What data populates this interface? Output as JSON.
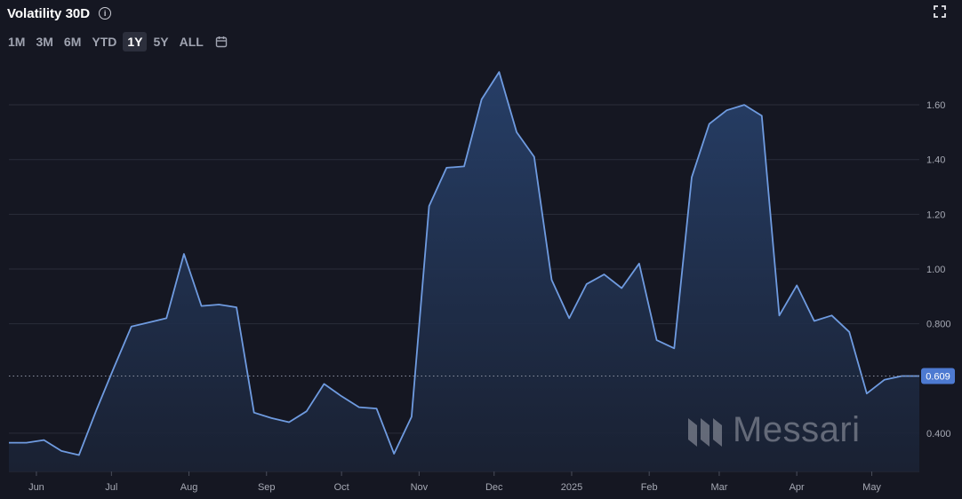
{
  "header": {
    "title": "Volatility 30D",
    "info_icon": "info-icon",
    "fullscreen_icon": "fullscreen-icon"
  },
  "range_selector": {
    "buttons": [
      "1M",
      "3M",
      "6M",
      "YTD",
      "1Y",
      "5Y",
      "ALL"
    ],
    "active": "1Y",
    "calendar_icon": "calendar-icon"
  },
  "watermark": {
    "text": "Messari",
    "icon": "messari-logo"
  },
  "colors": {
    "background": "#151722",
    "line": "#6f9be0",
    "area_top": "#27406a",
    "area_bottom": "#1a2234",
    "badge": "#4d7ad1",
    "grid": "#2a2d3a"
  },
  "chart_data": {
    "type": "area",
    "title": "Volatility 30D",
    "xlabel": "",
    "ylabel": "",
    "ylim": [
      0.26,
      1.73
    ],
    "yticks": [
      0.4,
      0.8,
      1.0,
      1.2,
      1.4,
      1.6
    ],
    "ytick_labels": [
      "0.400",
      "0.800",
      "1.00",
      "1.20",
      "1.40",
      "1.60"
    ],
    "xtick_labels": [
      "Jun",
      "Jul",
      "Aug",
      "Sep",
      "Oct",
      "Nov",
      "Dec",
      "2025",
      "Feb",
      "Mar",
      "Apr",
      "May"
    ],
    "xticks": [
      "2024-06-01",
      "2024-07-01",
      "2024-08-01",
      "2024-09-01",
      "2024-10-01",
      "2024-11-01",
      "2024-12-01",
      "2025-01-01",
      "2025-02-01",
      "2025-03-01",
      "2025-04-01",
      "2025-05-01"
    ],
    "grid": true,
    "legend": "none",
    "current_value": 0.609,
    "current_value_label": "0.609",
    "x": [
      "2024-05-21",
      "2024-05-28",
      "2024-06-04",
      "2024-06-11",
      "2024-06-18",
      "2024-06-25",
      "2024-07-02",
      "2024-07-09",
      "2024-07-16",
      "2024-07-23",
      "2024-07-30",
      "2024-08-06",
      "2024-08-13",
      "2024-08-20",
      "2024-08-27",
      "2024-09-03",
      "2024-09-10",
      "2024-09-17",
      "2024-09-24",
      "2024-10-01",
      "2024-10-08",
      "2024-10-15",
      "2024-10-22",
      "2024-10-29",
      "2024-11-05",
      "2024-11-12",
      "2024-11-19",
      "2024-11-26",
      "2024-12-03",
      "2024-12-10",
      "2024-12-17",
      "2024-12-24",
      "2024-12-31",
      "2025-01-07",
      "2025-01-14",
      "2025-01-21",
      "2025-01-28",
      "2025-02-04",
      "2025-02-11",
      "2025-02-18",
      "2025-02-25",
      "2025-03-04",
      "2025-03-11",
      "2025-03-18",
      "2025-03-25",
      "2025-04-01",
      "2025-04-08",
      "2025-04-15",
      "2025-04-22",
      "2025-04-29",
      "2025-05-06",
      "2025-05-13",
      "2025-05-20"
    ],
    "series": [
      {
        "values": [
          0.365,
          0.365,
          0.375,
          0.335,
          0.32,
          0.485,
          0.64,
          0.79,
          0.805,
          0.82,
          1.055,
          0.865,
          0.87,
          0.86,
          0.475,
          0.455,
          0.44,
          0.48,
          0.58,
          0.535,
          0.495,
          0.49,
          0.325,
          0.46,
          1.23,
          1.37,
          1.375,
          1.62,
          1.72,
          1.5,
          1.41,
          0.96,
          0.82,
          0.945,
          0.98,
          0.93,
          1.02,
          0.74,
          0.71,
          1.335,
          1.53,
          1.58,
          1.6,
          1.56,
          0.83,
          0.94,
          0.81,
          0.83,
          0.77,
          0.545,
          0.595,
          0.609,
          0.609
        ]
      }
    ]
  }
}
